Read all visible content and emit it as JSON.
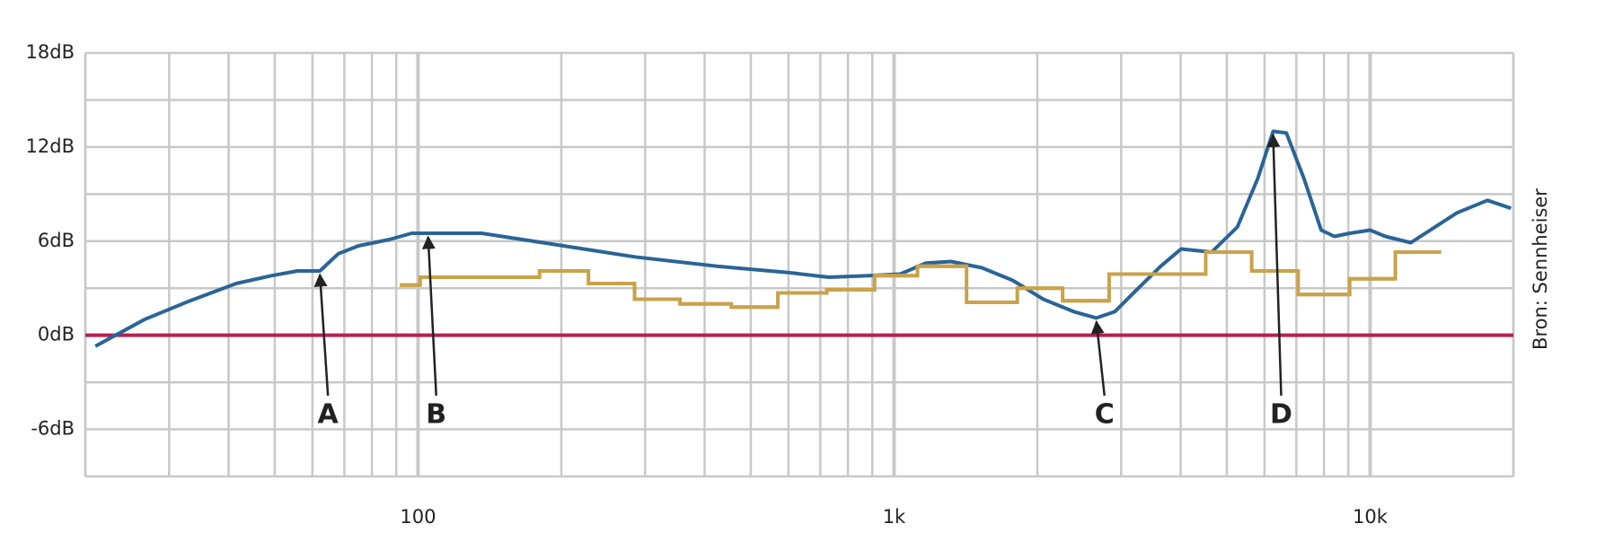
{
  "chart_data": {
    "type": "line",
    "x_scale": "log",
    "grid": true,
    "xlim": [
      20,
      20000
    ],
    "ylim": [
      -9,
      18
    ],
    "xticks": [
      {
        "value": 100,
        "label": "100"
      },
      {
        "value": 1000,
        "label": "1k"
      },
      {
        "value": 10000,
        "label": "10k"
      }
    ],
    "yticks": [
      {
        "value": -6,
        "label": "-6dB"
      },
      {
        "value": 0,
        "label": "0dB"
      },
      {
        "value": 6,
        "label": "6dB"
      },
      {
        "value": 12,
        "label": "12dB"
      },
      {
        "value": 18,
        "label": "18dB"
      }
    ],
    "reference_line": {
      "value": 0,
      "color": "#b5214f"
    },
    "series": [
      {
        "color": "#2a6496",
        "x": [
          21,
          26.6,
          33.2,
          41.5,
          49.3,
          55.8,
          62.2,
          68,
          75,
          87,
          97,
          136,
          202,
          285,
          424,
          598,
          729,
          887,
          1030,
          1165,
          1318,
          1530,
          1775,
          2058,
          2386,
          2661,
          2908,
          3210,
          3633,
          4008,
          4648,
          5262,
          5808,
          6255,
          6668,
          7260,
          7893,
          8415,
          9065,
          10000,
          10770,
          12180,
          15210,
          17650,
          19770
        ],
        "values": [
          -0.7,
          1.0,
          2.2,
          3.3,
          3.8,
          4.1,
          4.1,
          5.2,
          5.7,
          6.1,
          6.5,
          6.5,
          5.7,
          5.0,
          4.4,
          4.0,
          3.7,
          3.8,
          3.9,
          4.6,
          4.7,
          4.3,
          3.5,
          2.3,
          1.5,
          1.1,
          1.5,
          2.8,
          4.4,
          5.5,
          5.3,
          6.9,
          10.0,
          13.0,
          12.9,
          10.0,
          6.7,
          6.3,
          6.5,
          6.7,
          6.3,
          5.9,
          7.8,
          8.6,
          8.1
        ]
      },
      {
        "color": "#c9a24a",
        "type": "step",
        "bins": [
          91.5,
          101,
          180,
          228,
          285,
          355,
          455,
          570,
          722,
          910,
          1120,
          1420,
          1815,
          2260,
          2830,
          4515,
          5640,
          7060,
          9060,
          11300,
          14100
        ],
        "values": [
          3.2,
          3.7,
          4.1,
          3.3,
          2.3,
          2.0,
          1.8,
          2.7,
          2.9,
          3.8,
          4.4,
          2.1,
          3.0,
          2.2,
          3.9,
          5.3,
          4.1,
          2.6,
          3.6,
          5.3
        ]
      }
    ],
    "annotations": [
      {
        "text": "A",
        "x": 62.2,
        "y": 4.1
      },
      {
        "text": "B",
        "x": 105,
        "y": 6.5
      },
      {
        "text": "C",
        "x": 2661,
        "y": 1.1
      },
      {
        "text": "D",
        "x": 6255,
        "y": 13.0
      }
    ],
    "source": "Bron: Sennheiser"
  }
}
